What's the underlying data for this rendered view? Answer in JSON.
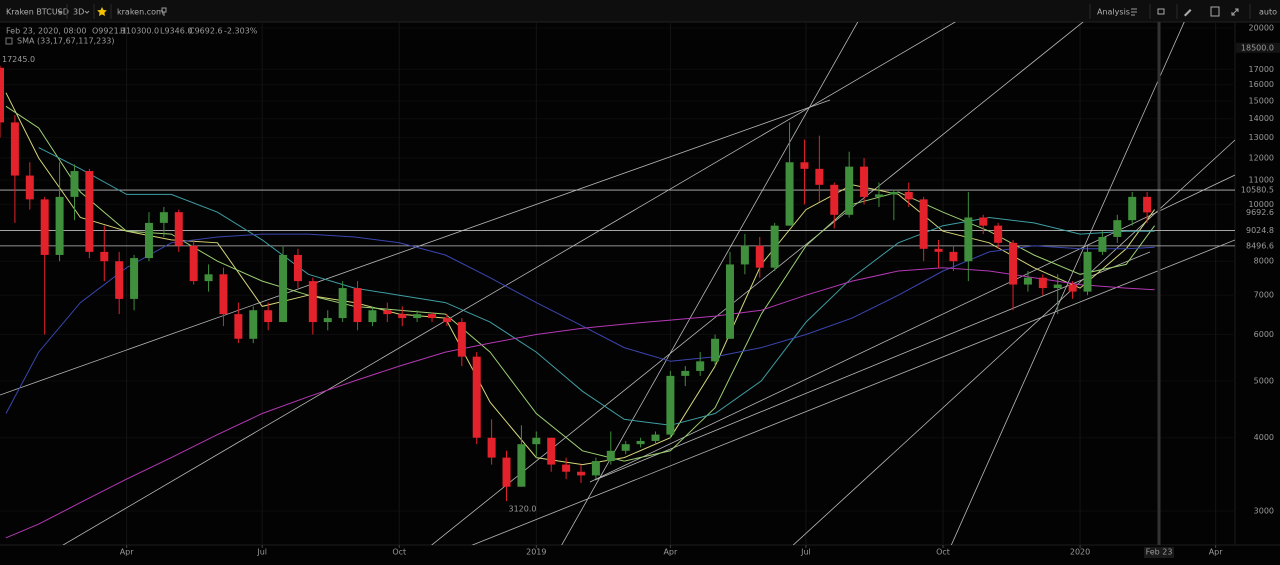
{
  "toolbar": {
    "symbol": "Kraken BTCUSD",
    "interval": "3D",
    "source": "kraken.com",
    "analysis": "Analysis",
    "scale_mode": "auto"
  },
  "chart_data": {
    "type": "candlestick",
    "info": {
      "date": "Feb 23, 2020, 08:00",
      "open": "O9921.1",
      "high": "H10300.0",
      "low": "L9346.0",
      "close": "C9692.6",
      "change": "-2.303%"
    },
    "indicator_label": "SMA (33,17,67,117,233)",
    "x": [
      "2018-01-06",
      "2018-01-16",
      "2018-01-26",
      "2018-02-05",
      "2018-02-15",
      "2018-02-25",
      "2018-03-07",
      "2018-03-17",
      "2018-03-27",
      "2018-04-06",
      "2018-04-16",
      "2018-04-26",
      "2018-05-06",
      "2018-05-16",
      "2018-05-26",
      "2018-06-05",
      "2018-06-15",
      "2018-06-25",
      "2018-07-05",
      "2018-07-15",
      "2018-07-25",
      "2018-08-04",
      "2018-08-14",
      "2018-08-24",
      "2018-09-03",
      "2018-09-13",
      "2018-09-23",
      "2018-10-03",
      "2018-10-13",
      "2018-10-23",
      "2018-11-02",
      "2018-11-12",
      "2018-11-22",
      "2018-12-02",
      "2018-12-12",
      "2018-12-22",
      "2019-01-01",
      "2019-01-11",
      "2019-01-21",
      "2019-01-31",
      "2019-02-10",
      "2019-02-20",
      "2019-03-02",
      "2019-03-12",
      "2019-03-22",
      "2019-04-01",
      "2019-04-11",
      "2019-04-21",
      "2019-05-01",
      "2019-05-11",
      "2019-05-21",
      "2019-05-31",
      "2019-06-10",
      "2019-06-20",
      "2019-06-30",
      "2019-07-10",
      "2019-07-20",
      "2019-07-30",
      "2019-08-09",
      "2019-08-19",
      "2019-08-29",
      "2019-09-08",
      "2019-09-18",
      "2019-09-28",
      "2019-10-08",
      "2019-10-18",
      "2019-10-28",
      "2019-11-07",
      "2019-11-17",
      "2019-11-27",
      "2019-12-07",
      "2019-12-17",
      "2019-12-27",
      "2020-01-06",
      "2020-01-16",
      "2020-01-26",
      "2020-02-05",
      "2020-02-15"
    ],
    "open": [
      17100,
      13800,
      11200,
      10200,
      8200,
      10300,
      11400,
      8300,
      8000,
      6900,
      8100,
      9300,
      9700,
      8500,
      7400,
      7600,
      6500,
      5900,
      6600,
      6300,
      8200,
      7400,
      6300,
      6400,
      7200,
      6300,
      6600,
      6500,
      6400,
      6500,
      6400,
      6300,
      5500,
      4000,
      3700,
      3300,
      3900,
      4000,
      3600,
      3500,
      3450,
      3650,
      3800,
      3900,
      3950,
      4050,
      5100,
      5200,
      5400,
      5900,
      7900,
      8500,
      7800,
      9200,
      11800,
      11500,
      10800,
      9600,
      11600,
      10300,
      10400,
      10500,
      10200,
      8400,
      8300,
      8000,
      9500,
      9200,
      8600,
      7300,
      7500,
      7200,
      7300,
      7100,
      8300,
      8800,
      9400,
      10300
    ],
    "high": [
      17245,
      14200,
      11800,
      10300,
      11800,
      11700,
      11500,
      9200,
      8300,
      8200,
      9700,
      9900,
      9800,
      8700,
      7900,
      7800,
      6800,
      6700,
      6800,
      8500,
      8400,
      7500,
      6600,
      7400,
      7400,
      6700,
      6800,
      6700,
      6600,
      6550,
      6500,
      6400,
      5600,
      4300,
      3800,
      4200,
      4100,
      4000,
      3700,
      3600,
      3700,
      4100,
      3950,
      4000,
      4100,
      5200,
      5300,
      5600,
      6000,
      8300,
      8900,
      8800,
      9300,
      13800,
      12900,
      13100,
      10900,
      12300,
      12000,
      10900,
      10600,
      10900,
      10300,
      8700,
      8500,
      10500,
      9600,
      9300,
      8700,
      7700,
      7600,
      7600,
      7400,
      8500,
      9000,
      9600,
      10500,
      10500
    ],
    "low": [
      13000,
      9300,
      9800,
      6000,
      8000,
      9400,
      8100,
      7400,
      6500,
      6600,
      8000,
      8800,
      8300,
      7300,
      7100,
      6200,
      5800,
      5800,
      6100,
      6300,
      7200,
      6000,
      6100,
      6300,
      6100,
      6200,
      6300,
      6200,
      6300,
      6300,
      6200,
      5300,
      3900,
      3600,
      3120,
      3300,
      3700,
      3500,
      3400,
      3350,
      3400,
      3600,
      3750,
      3850,
      3900,
      4000,
      4900,
      5100,
      5300,
      5900,
      7600,
      7500,
      7700,
      9200,
      10000,
      10100,
      9100,
      9500,
      10000,
      9900,
      9400,
      9900,
      8000,
      7800,
      7700,
      7400,
      8900,
      8400,
      6600,
      7100,
      7000,
      6500,
      6900,
      7000,
      8200,
      8600,
      9200,
      9300
    ],
    "close": [
      13800,
      11200,
      10200,
      8200,
      10300,
      11400,
      8300,
      8000,
      6900,
      8100,
      9300,
      9700,
      8500,
      7400,
      7600,
      6500,
      5900,
      6600,
      6300,
      8200,
      7400,
      6300,
      6400,
      7200,
      6300,
      6600,
      6500,
      6400,
      6500,
      6400,
      6300,
      5500,
      4000,
      3700,
      3300,
      3900,
      4000,
      3600,
      3500,
      3450,
      3650,
      3800,
      3900,
      3950,
      4050,
      5100,
      5200,
      5400,
      5900,
      7900,
      8500,
      7800,
      9200,
      11800,
      11500,
      10800,
      9600,
      11600,
      10300,
      10400,
      10500,
      10200,
      8400,
      8300,
      8000,
      9500,
      9200,
      8600,
      7300,
      7500,
      7200,
      7300,
      7100,
      8300,
      8800,
      9400,
      10300,
      9692.6
    ],
    "up_color": "#3f8f3c",
    "down_color": "#e3222b",
    "sma": {
      "x": [
        "2018-01-10",
        "2018-02-01",
        "2018-03-01",
        "2018-04-01",
        "2018-05-01",
        "2018-06-01",
        "2018-07-01",
        "2018-08-01",
        "2018-09-01",
        "2018-10-01",
        "2018-11-01",
        "2018-12-01",
        "2019-01-01",
        "2019-02-01",
        "2019-03-01",
        "2019-04-01",
        "2019-05-01",
        "2019-06-01",
        "2019-07-01",
        "2019-08-01",
        "2019-09-01",
        "2019-10-01",
        "2019-11-01",
        "2019-12-01",
        "2020-01-01",
        "2020-02-01",
        "2020-02-20"
      ],
      "series": [
        {
          "color": "#d6d67a",
          "values": [
            15500,
            12000,
            9500,
            9000,
            8700,
            8600,
            6700,
            7000,
            6800,
            6500,
            6400,
            4600,
            3700,
            3600,
            3700,
            4000,
            5300,
            7900,
            9800,
            10800,
            10400,
            9000,
            8600,
            7800,
            7200,
            8400,
            9800
          ]
        },
        {
          "color": "#9ccf72",
          "values": [
            14700,
            13500,
            10500,
            9000,
            8900,
            8000,
            7400,
            7000,
            6700,
            6600,
            6500,
            5600,
            4400,
            3800,
            3650,
            3800,
            4500,
            6500,
            8500,
            10000,
            10500,
            9700,
            9000,
            8200,
            7600,
            7900,
            9200
          ]
        },
        {
          "color": "#3f9ea3",
          "values": [
            null,
            12500,
            11500,
            10400,
            10400,
            9700,
            8700,
            7600,
            7200,
            7000,
            6800,
            6300,
            5600,
            4800,
            4300,
            4200,
            4400,
            5000,
            6300,
            7500,
            8600,
            9200,
            9500,
            9300,
            8900,
            9000,
            9000
          ]
        },
        {
          "color": "#3a46b0",
          "values": [
            4400,
            5600,
            6800,
            7800,
            8600,
            8800,
            8900,
            8900,
            8800,
            8600,
            8200,
            7500,
            6800,
            6200,
            5700,
            5400,
            5500,
            5700,
            6000,
            6400,
            7000,
            7700,
            8300,
            8500,
            8400,
            8400,
            8450
          ]
        },
        {
          "color": "#b438b4",
          "values": [
            2700,
            2850,
            3100,
            3400,
            3700,
            4050,
            4400,
            4700,
            5000,
            5300,
            5600,
            5800,
            6000,
            6150,
            6250,
            6350,
            6450,
            6600,
            7000,
            7400,
            7700,
            7800,
            7700,
            7500,
            7300,
            7200,
            7150
          ]
        }
      ]
    },
    "xlim": [
      "2018-01-06",
      "2020-04-14"
    ],
    "xticks": [
      {
        "value": "2018-04",
        "label": "Apr"
      },
      {
        "value": "2018-07",
        "label": "Jul"
      },
      {
        "value": "2018-10",
        "label": "Oct"
      },
      {
        "value": "2019-01",
        "label": "2019"
      },
      {
        "value": "2019-04",
        "label": "Apr"
      },
      {
        "value": "2019-07",
        "label": "Jul"
      },
      {
        "value": "2019-10",
        "label": "Oct"
      },
      {
        "value": "2020-01",
        "label": "2020"
      },
      {
        "value": "2020-04",
        "label": "Apr"
      }
    ],
    "ylim": [
      2625,
      20470
    ],
    "yscale": "log",
    "yticks": [
      3000,
      4000,
      5000,
      6000,
      7000,
      8000,
      10000,
      11000,
      12000,
      13000,
      14000,
      15000,
      16000,
      17000,
      20000
    ],
    "grid": true,
    "crosshair": {
      "x": {
        "value": "2020-02-23",
        "label": "Feb 23"
      },
      "y": {
        "value": 18500,
        "label": "18500.0"
      }
    },
    "price_lines": [
      10580.5,
      9024.8,
      8496.6
    ],
    "last_price": 9692.6,
    "annotations": [
      {
        "x": "2018-01-06",
        "value": 17245,
        "label": "17245.0"
      },
      {
        "x": "2018-12-12",
        "value": 3120,
        "label": "3120.0"
      }
    ]
  }
}
